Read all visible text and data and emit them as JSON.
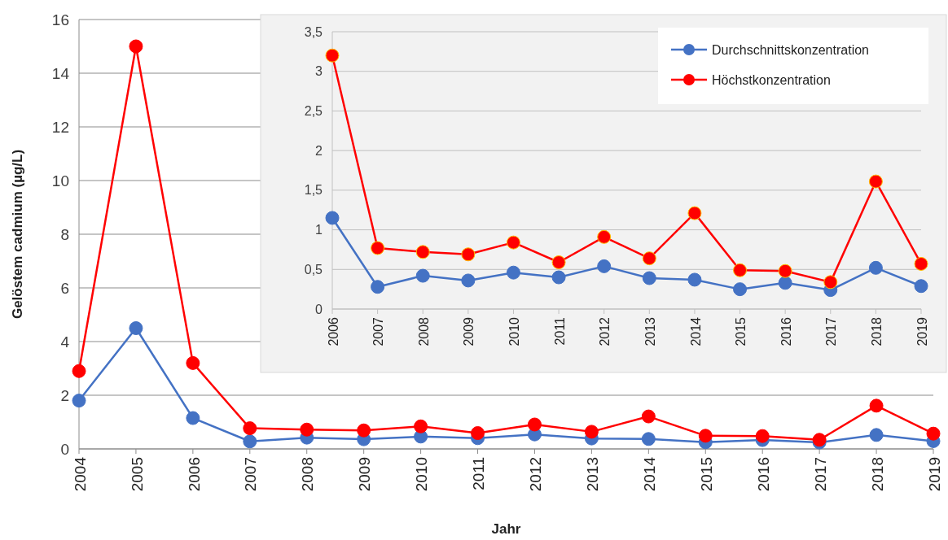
{
  "chart_data": [
    {
      "type": "line",
      "xlabel": "Jahr",
      "ylabel": "Gelöstem cadmium (µg/L)",
      "categories": [
        "2004",
        "2005",
        "2006",
        "2007",
        "2008",
        "2009",
        "2010",
        "2011",
        "2012",
        "2013",
        "2014",
        "2015",
        "2016",
        "2017",
        "2018",
        "2019"
      ],
      "series": [
        {
          "color": "#4472c4",
          "values": [
            1.8,
            4.5,
            1.15,
            0.28,
            0.42,
            0.36,
            0.46,
            0.4,
            0.54,
            0.39,
            0.37,
            0.25,
            0.33,
            0.24,
            0.52,
            0.29
          ]
        },
        {
          "color": "#ff0000",
          "values": [
            2.9,
            15,
            3.2,
            0.77,
            0.72,
            0.69,
            0.84,
            0.59,
            0.91,
            0.64,
            1.21,
            0.49,
            0.48,
            0.34,
            1.61,
            0.57
          ]
        }
      ],
      "ylim": [
        0,
        16
      ],
      "yticks": [
        0,
        2,
        4,
        6,
        8,
        10,
        12,
        14,
        16
      ],
      "grid": "y",
      "marker": "circle",
      "legend": false
    },
    {
      "type": "line",
      "categories": [
        "2006",
        "2007",
        "2008",
        "2009",
        "2010",
        "2011",
        "2012",
        "2013",
        "2014",
        "2015",
        "2016",
        "2017",
        "2018",
        "2019"
      ],
      "series": [
        {
          "name": "Durchschnittskonzentration",
          "color": "#4472c4",
          "values": [
            1.15,
            0.28,
            0.42,
            0.36,
            0.46,
            0.4,
            0.54,
            0.39,
            0.37,
            0.25,
            0.33,
            0.24,
            0.52,
            0.29
          ]
        },
        {
          "name": "Höchstkonzentration",
          "color": "#ff0000",
          "values": [
            3.2,
            0.77,
            0.72,
            0.69,
            0.84,
            0.59,
            0.91,
            0.64,
            1.21,
            0.49,
            0.48,
            0.34,
            1.61,
            0.57
          ]
        }
      ],
      "ylim": [
        0,
        3.5
      ],
      "yticks": [
        0,
        {
          "value": 0.5,
          "label": "0,5"
        },
        1,
        {
          "value": 1.5,
          "label": "1,5"
        },
        2,
        {
          "value": 2.5,
          "label": "2,5"
        },
        3,
        {
          "value": 3.5,
          "label": "3,5"
        }
      ],
      "grid": "y",
      "marker": "circle",
      "legend": "top right"
    }
  ]
}
